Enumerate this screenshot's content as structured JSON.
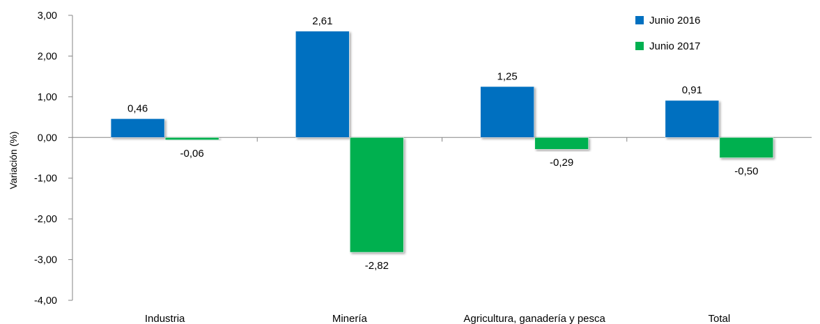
{
  "chart_data": {
    "type": "bar",
    "title": "",
    "xlabel": "",
    "ylabel": "Variación (%)",
    "ylim": [
      -4,
      3
    ],
    "yticks": [
      3,
      2,
      1,
      0,
      -1,
      -2,
      -3,
      -4
    ],
    "ytick_labels": [
      "3,00",
      "2,00",
      "1,00",
      "0,00",
      "-1,00",
      "-2,00",
      "-3,00",
      "-4,00"
    ],
    "categories": [
      "Industria",
      "Minería",
      "Agricultura, ganadería y pesca",
      "Total"
    ],
    "series": [
      {
        "name": "Junio 2016",
        "color": "#0070C0",
        "values": [
          0.46,
          2.61,
          1.25,
          0.91
        ],
        "labels": [
          "0,46",
          "2,61",
          "1,25",
          "0,91"
        ]
      },
      {
        "name": "Junio 2017",
        "color": "#00B050",
        "values": [
          -0.06,
          -2.82,
          -0.29,
          -0.5
        ],
        "labels": [
          "-0,06",
          "-2,82",
          "-0,29",
          "-0,50"
        ]
      }
    ],
    "legend_position": "top-right",
    "grid": false
  }
}
